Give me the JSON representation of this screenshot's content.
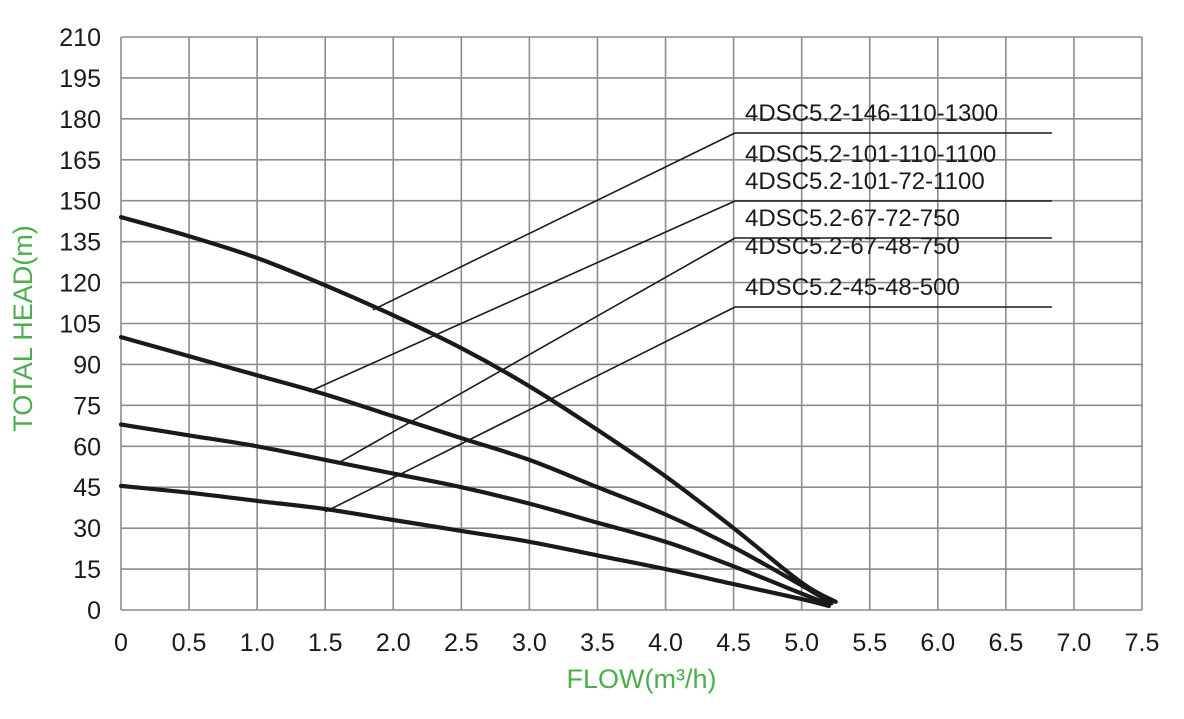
{
  "chart_data": {
    "type": "line",
    "xlabel": "FLOW(m³/h)",
    "ylabel": "TOTAL HEAD(m)",
    "xlim": [
      0,
      7.5
    ],
    "ylim": [
      0,
      210
    ],
    "x_ticks": [
      "0",
      "0.5",
      "1.0",
      "1.5",
      "2.0",
      "2.5",
      "3.0",
      "3.5",
      "4.0",
      "4.5",
      "5.0",
      "5.5",
      "6.0",
      "6.5",
      "7.0",
      "7.5"
    ],
    "y_ticks": [
      "0",
      "15",
      "30",
      "45",
      "60",
      "75",
      "90",
      "105",
      "120",
      "135",
      "150",
      "165",
      "180",
      "195",
      "210"
    ],
    "grid": true,
    "colors": {
      "curve": "#1a1a1a",
      "grid": "#8c8c8c",
      "axis_label": "#4cae4c"
    },
    "series": [
      {
        "name": "4DSC5.2-146-110-1300",
        "x": [
          0,
          0.5,
          1.0,
          1.5,
          2.0,
          2.5,
          3.0,
          3.5,
          4.0,
          4.5,
          5.0,
          5.25
        ],
        "y": [
          144,
          137,
          129,
          119,
          108,
          96,
          82,
          66,
          49,
          30,
          10,
          3
        ]
      },
      {
        "name": "4DSC5.2-101-110-1100",
        "x": [
          0,
          0.5,
          1.0,
          1.5,
          2.0,
          2.5,
          3.0,
          3.5,
          4.0,
          4.5,
          5.0,
          5.22
        ],
        "y": [
          100,
          93,
          86,
          79,
          71,
          63,
          55,
          45,
          35,
          23,
          9,
          2.5
        ]
      },
      {
        "name": "4DSC5.2-101-72-1100",
        "x": [
          0,
          0.5,
          1.0,
          1.5,
          2.0,
          2.5,
          3.0,
          3.5,
          4.0,
          4.5,
          5.0,
          5.2
        ],
        "y": [
          68,
          64,
          60,
          55,
          50,
          45,
          39,
          32,
          25,
          16,
          6,
          2
        ]
      },
      {
        "name": "4DSC5.2-67-72-750",
        "x": [
          0,
          0.5,
          1.0,
          1.5,
          2.0,
          2.5,
          3.0,
          3.5,
          4.0,
          4.5,
          5.0,
          5.2
        ],
        "y": [
          45.5,
          43,
          40,
          37,
          33,
          29,
          25,
          20,
          15,
          9.5,
          4,
          1.5
        ]
      },
      {
        "name": "4DSC5.2-67-48-750",
        "x": [],
        "y": []
      },
      {
        "name": "4DSC5.2-45-48-500",
        "x": [],
        "y": []
      }
    ],
    "labels": [
      {
        "text": "4DSC5.2-146-110-1300",
        "row": 0,
        "points_to": {
          "x": 1.85,
          "y": 110
        }
      },
      {
        "text": "4DSC5.2-101-110-1100",
        "row": 1,
        "points_to": null
      },
      {
        "text": "4DSC5.2-101-72-1100",
        "row": 2,
        "points_to": {
          "x": 1.38,
          "y": 80
        }
      },
      {
        "text": "4DSC5.2-67-72-750",
        "row": 3,
        "points_to": {
          "x": 1.6,
          "y": 54
        }
      },
      {
        "text": "4DSC5.2-67-48-750",
        "row": 4,
        "points_to": null
      },
      {
        "text": "4DSC5.2-45-48-500",
        "row": 5,
        "points_to": {
          "x": 1.5,
          "y": 36
        }
      }
    ]
  }
}
